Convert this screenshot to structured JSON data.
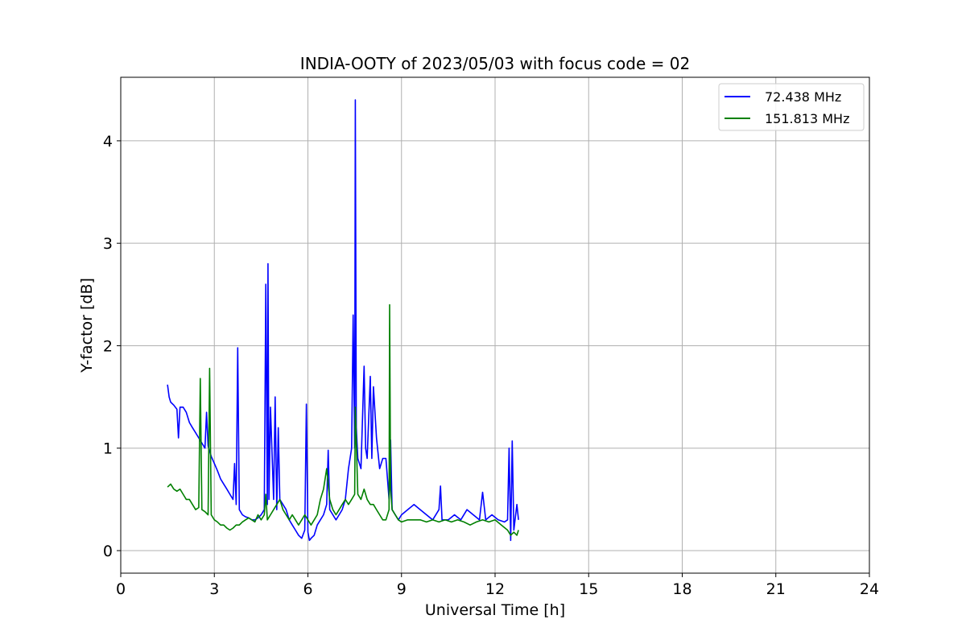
{
  "chart_data": {
    "type": "line",
    "title": "INDIA-OOTY of 2023/05/03 with focus code = 02",
    "xlabel": "Universal Time [h]",
    "ylabel": "Y-factor [dB]",
    "xlim": [
      0,
      24
    ],
    "ylim": [
      -0.22,
      4.62
    ],
    "xticks": [
      0,
      3,
      6,
      9,
      12,
      15,
      18,
      21,
      24
    ],
    "yticks": [
      0,
      1,
      2,
      3,
      4
    ],
    "grid": true,
    "legend_position": "top-right",
    "series": [
      {
        "name": "72.438 MHz",
        "color": "#0000ff",
        "x": [
          1.5,
          1.55,
          1.6,
          1.7,
          1.8,
          1.85,
          1.9,
          2.0,
          2.1,
          2.2,
          2.3,
          2.4,
          2.5,
          2.6,
          2.7,
          2.75,
          2.8,
          2.9,
          3.0,
          3.1,
          3.2,
          3.3,
          3.4,
          3.5,
          3.6,
          3.65,
          3.7,
          3.75,
          3.8,
          3.9,
          4.0,
          4.1,
          4.2,
          4.3,
          4.4,
          4.5,
          4.6,
          4.65,
          4.7,
          4.72,
          4.75,
          4.8,
          4.9,
          4.95,
          5.0,
          5.05,
          5.1,
          5.2,
          5.3,
          5.4,
          5.5,
          5.6,
          5.7,
          5.8,
          5.9,
          5.95,
          6.0,
          6.05,
          6.1,
          6.2,
          6.3,
          6.4,
          6.5,
          6.6,
          6.65,
          6.7,
          6.8,
          6.9,
          7.0,
          7.1,
          7.2,
          7.3,
          7.4,
          7.45,
          7.5,
          7.52,
          7.55,
          7.6,
          7.7,
          7.8,
          7.85,
          7.9,
          8.0,
          8.05,
          8.1,
          8.2,
          8.3,
          8.4,
          8.5,
          8.6,
          8.65,
          8.7,
          8.8,
          8.9,
          9.0,
          9.2,
          9.4,
          9.6,
          9.8,
          10.0,
          10.2,
          10.25,
          10.3,
          10.5,
          10.7,
          10.9,
          11.1,
          11.3,
          11.5,
          11.6,
          11.7,
          11.9,
          12.1,
          12.3,
          12.4,
          12.45,
          12.5,
          12.55,
          12.6,
          12.7,
          12.75
        ],
        "values": [
          1.62,
          1.5,
          1.45,
          1.42,
          1.38,
          1.1,
          1.4,
          1.4,
          1.35,
          1.25,
          1.2,
          1.15,
          1.1,
          1.05,
          1.0,
          1.35,
          1.02,
          0.92,
          0.85,
          0.78,
          0.7,
          0.65,
          0.6,
          0.55,
          0.5,
          0.85,
          0.45,
          1.98,
          0.4,
          0.35,
          0.33,
          0.32,
          0.3,
          0.3,
          0.32,
          0.35,
          0.4,
          2.6,
          0.45,
          2.8,
          0.5,
          1.4,
          0.5,
          1.5,
          0.4,
          1.2,
          0.5,
          0.45,
          0.4,
          0.3,
          0.25,
          0.2,
          0.15,
          0.12,
          0.2,
          1.43,
          0.18,
          0.1,
          0.12,
          0.15,
          0.25,
          0.3,
          0.35,
          0.45,
          0.98,
          0.4,
          0.35,
          0.3,
          0.35,
          0.4,
          0.5,
          0.8,
          1.0,
          2.3,
          1.0,
          4.4,
          1.2,
          0.9,
          0.8,
          1.8,
          1.0,
          0.9,
          1.7,
          0.9,
          1.6,
          1.1,
          0.8,
          0.9,
          0.9,
          0.5,
          1.08,
          0.4,
          0.35,
          0.3,
          0.35,
          0.4,
          0.45,
          0.4,
          0.35,
          0.3,
          0.4,
          0.63,
          0.3,
          0.3,
          0.35,
          0.3,
          0.4,
          0.35,
          0.3,
          0.57,
          0.3,
          0.35,
          0.3,
          0.28,
          0.3,
          1.0,
          0.1,
          1.07,
          0.2,
          0.45,
          0.3
        ]
      },
      {
        "name": "151.813 MHz",
        "color": "#008000",
        "x": [
          1.5,
          1.6,
          1.7,
          1.8,
          1.9,
          2.0,
          2.1,
          2.2,
          2.3,
          2.4,
          2.5,
          2.55,
          2.6,
          2.7,
          2.8,
          2.85,
          2.9,
          3.0,
          3.1,
          3.2,
          3.3,
          3.4,
          3.5,
          3.6,
          3.7,
          3.8,
          3.9,
          4.0,
          4.1,
          4.2,
          4.3,
          4.4,
          4.5,
          4.6,
          4.65,
          4.7,
          4.8,
          4.9,
          5.0,
          5.1,
          5.2,
          5.3,
          5.4,
          5.5,
          5.6,
          5.7,
          5.8,
          5.9,
          6.0,
          6.1,
          6.2,
          6.3,
          6.4,
          6.5,
          6.6,
          6.7,
          6.8,
          6.9,
          7.0,
          7.1,
          7.2,
          7.3,
          7.4,
          7.5,
          7.52,
          7.6,
          7.7,
          7.8,
          7.9,
          8.0,
          8.1,
          8.2,
          8.3,
          8.4,
          8.5,
          8.6,
          8.62,
          8.65,
          8.7,
          8.8,
          8.9,
          9.0,
          9.2,
          9.4,
          9.6,
          9.8,
          10.0,
          10.2,
          10.4,
          10.6,
          10.8,
          11.0,
          11.2,
          11.4,
          11.6,
          11.8,
          12.0,
          12.2,
          12.4,
          12.5,
          12.6,
          12.7,
          12.75
        ],
        "values": [
          0.62,
          0.65,
          0.6,
          0.58,
          0.6,
          0.55,
          0.5,
          0.5,
          0.45,
          0.4,
          0.42,
          1.68,
          0.4,
          0.38,
          0.35,
          1.78,
          0.35,
          0.3,
          0.28,
          0.25,
          0.25,
          0.22,
          0.2,
          0.22,
          0.25,
          0.25,
          0.28,
          0.3,
          0.32,
          0.3,
          0.28,
          0.35,
          0.3,
          0.35,
          0.55,
          0.3,
          0.35,
          0.4,
          0.45,
          0.5,
          0.4,
          0.35,
          0.3,
          0.35,
          0.3,
          0.25,
          0.3,
          0.35,
          0.3,
          0.25,
          0.3,
          0.35,
          0.5,
          0.6,
          0.8,
          0.5,
          0.4,
          0.35,
          0.4,
          0.45,
          0.5,
          0.45,
          0.5,
          0.55,
          1.4,
          0.55,
          0.5,
          0.6,
          0.5,
          0.45,
          0.45,
          0.4,
          0.35,
          0.3,
          0.3,
          0.4,
          2.4,
          0.6,
          0.4,
          0.35,
          0.3,
          0.28,
          0.3,
          0.3,
          0.3,
          0.28,
          0.3,
          0.28,
          0.3,
          0.28,
          0.3,
          0.28,
          0.25,
          0.28,
          0.3,
          0.28,
          0.3,
          0.25,
          0.2,
          0.15,
          0.18,
          0.15,
          0.2
        ]
      }
    ]
  }
}
